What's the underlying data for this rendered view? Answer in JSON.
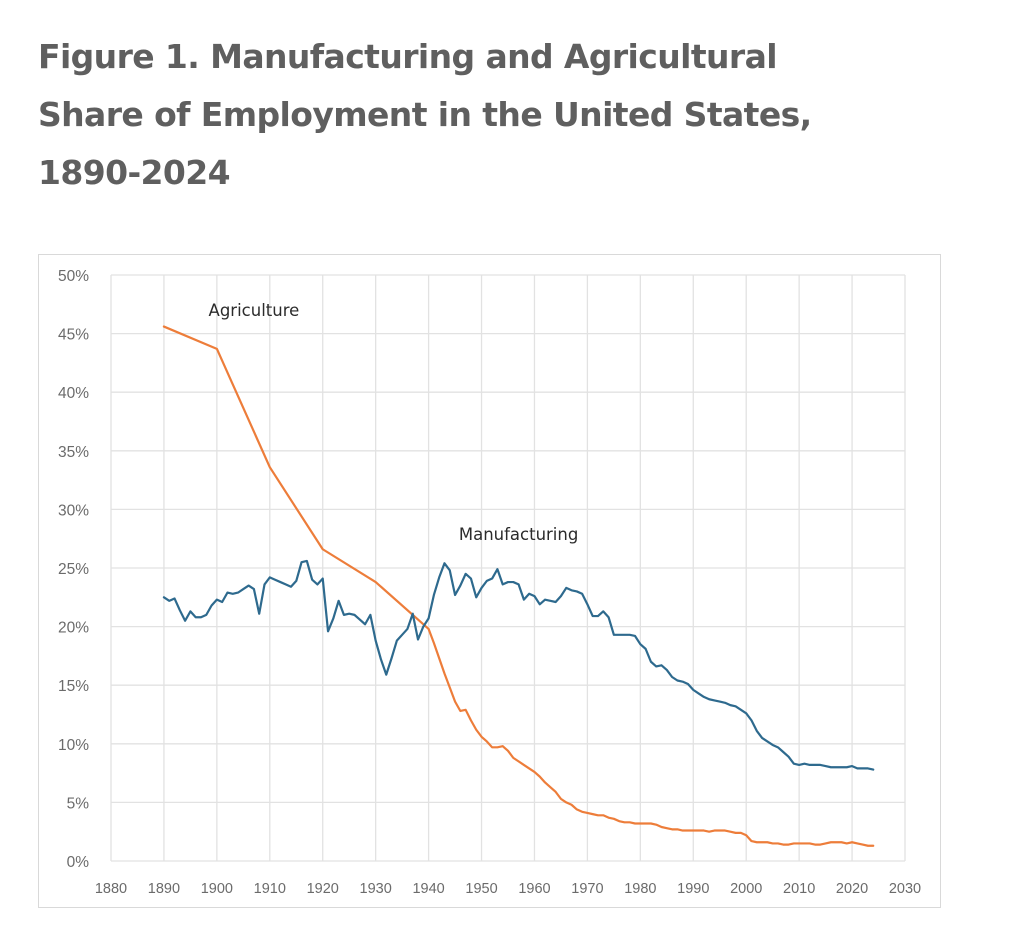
{
  "figure": {
    "title_lines": [
      "Figure 1. Manufacturing and Agricultural",
      "Share of Employment in the United States,",
      "1890-2024"
    ]
  },
  "chart_data": {
    "type": "line",
    "title": "Figure 1. Manufacturing and Agricultural Share of Employment in the United States, 1890-2024",
    "xlabel": "",
    "ylabel": "",
    "xlim": [
      1880,
      2030
    ],
    "ylim": [
      0,
      50
    ],
    "x_ticks": [
      1880,
      1890,
      1900,
      1910,
      1920,
      1930,
      1940,
      1950,
      1960,
      1970,
      1980,
      1990,
      2000,
      2010,
      2020,
      2030
    ],
    "x_tick_labels": [
      "1880",
      "1890",
      "1900",
      "1910",
      "1920",
      "1930",
      "1940",
      "1950",
      "1960",
      "1970",
      "1980",
      "1990",
      "2000",
      "2010",
      "2020",
      "2030"
    ],
    "y_ticks": [
      0,
      5,
      10,
      15,
      20,
      25,
      30,
      35,
      40,
      45,
      50
    ],
    "y_tick_labels": [
      "0%",
      "5%",
      "10%",
      "15%",
      "20%",
      "25%",
      "30%",
      "35%",
      "40%",
      "45%",
      "50%"
    ],
    "grid": true,
    "legend": "none (direct labels)",
    "annotations": [
      {
        "text": "Agriculture",
        "series": "Agriculture",
        "at": [
          1907,
          46.5
        ]
      },
      {
        "text": "Manufacturing",
        "series": "Manufacturing",
        "at": [
          1957,
          27.4
        ]
      }
    ],
    "series": [
      {
        "name": "Agriculture",
        "color": "#ED7D3A",
        "points": [
          [
            1890,
            45.6
          ],
          [
            1900,
            43.7
          ],
          [
            1910,
            33.6
          ],
          [
            1920,
            26.6
          ],
          [
            1930,
            23.8
          ],
          [
            1940,
            19.8
          ],
          [
            1941,
            18.6
          ],
          [
            1942,
            17.3
          ],
          [
            1943,
            16.0
          ],
          [
            1944,
            14.8
          ],
          [
            1945,
            13.6
          ],
          [
            1946,
            12.8
          ],
          [
            1947,
            12.9
          ],
          [
            1948,
            12.0
          ],
          [
            1949,
            11.2
          ],
          [
            1950,
            10.6
          ],
          [
            1951,
            10.2
          ],
          [
            1952,
            9.7
          ],
          [
            1953,
            9.7
          ],
          [
            1954,
            9.8
          ],
          [
            1955,
            9.4
          ],
          [
            1956,
            8.8
          ],
          [
            1957,
            8.5
          ],
          [
            1958,
            8.2
          ],
          [
            1959,
            7.9
          ],
          [
            1960,
            7.6
          ],
          [
            1961,
            7.2
          ],
          [
            1962,
            6.7
          ],
          [
            1963,
            6.3
          ],
          [
            1964,
            5.9
          ],
          [
            1965,
            5.3
          ],
          [
            1966,
            5.0
          ],
          [
            1967,
            4.8
          ],
          [
            1968,
            4.4
          ],
          [
            1969,
            4.2
          ],
          [
            1970,
            4.1
          ],
          [
            1971,
            4.0
          ],
          [
            1972,
            3.9
          ],
          [
            1973,
            3.9
          ],
          [
            1974,
            3.7
          ],
          [
            1975,
            3.6
          ],
          [
            1976,
            3.4
          ],
          [
            1977,
            3.3
          ],
          [
            1978,
            3.3
          ],
          [
            1979,
            3.2
          ],
          [
            1980,
            3.2
          ],
          [
            1981,
            3.2
          ],
          [
            1982,
            3.2
          ],
          [
            1983,
            3.1
          ],
          [
            1984,
            2.9
          ],
          [
            1985,
            2.8
          ],
          [
            1986,
            2.7
          ],
          [
            1987,
            2.7
          ],
          [
            1988,
            2.6
          ],
          [
            1989,
            2.6
          ],
          [
            1990,
            2.6
          ],
          [
            1991,
            2.6
          ],
          [
            1992,
            2.6
          ],
          [
            1993,
            2.5
          ],
          [
            1994,
            2.6
          ],
          [
            1995,
            2.6
          ],
          [
            1996,
            2.6
          ],
          [
            1997,
            2.5
          ],
          [
            1998,
            2.4
          ],
          [
            1999,
            2.4
          ],
          [
            2000,
            2.2
          ],
          [
            2001,
            1.7
          ],
          [
            2002,
            1.6
          ],
          [
            2003,
            1.6
          ],
          [
            2004,
            1.6
          ],
          [
            2005,
            1.5
          ],
          [
            2006,
            1.5
          ],
          [
            2007,
            1.4
          ],
          [
            2008,
            1.4
          ],
          [
            2009,
            1.5
          ],
          [
            2010,
            1.5
          ],
          [
            2011,
            1.5
          ],
          [
            2012,
            1.5
          ],
          [
            2013,
            1.4
          ],
          [
            2014,
            1.4
          ],
          [
            2015,
            1.5
          ],
          [
            2016,
            1.6
          ],
          [
            2017,
            1.6
          ],
          [
            2018,
            1.6
          ],
          [
            2019,
            1.5
          ],
          [
            2020,
            1.6
          ],
          [
            2021,
            1.5
          ],
          [
            2022,
            1.4
          ],
          [
            2023,
            1.3
          ],
          [
            2024,
            1.3
          ]
        ]
      },
      {
        "name": "Manufacturing",
        "color": "#2E6A8E",
        "points": [
          [
            1890,
            22.5
          ],
          [
            1891,
            22.2
          ],
          [
            1892,
            22.4
          ],
          [
            1893,
            21.4
          ],
          [
            1894,
            20.5
          ],
          [
            1895,
            21.3
          ],
          [
            1896,
            20.8
          ],
          [
            1897,
            20.8
          ],
          [
            1898,
            21.0
          ],
          [
            1899,
            21.8
          ],
          [
            1900,
            22.3
          ],
          [
            1901,
            22.1
          ],
          [
            1902,
            22.9
          ],
          [
            1903,
            22.8
          ],
          [
            1904,
            22.9
          ],
          [
            1905,
            23.2
          ],
          [
            1906,
            23.5
          ],
          [
            1907,
            23.2
          ],
          [
            1908,
            21.1
          ],
          [
            1909,
            23.6
          ],
          [
            1910,
            24.2
          ],
          [
            1911,
            24.0
          ],
          [
            1912,
            23.8
          ],
          [
            1913,
            23.6
          ],
          [
            1914,
            23.4
          ],
          [
            1915,
            23.9
          ],
          [
            1916,
            25.5
          ],
          [
            1917,
            25.6
          ],
          [
            1918,
            24.0
          ],
          [
            1919,
            23.6
          ],
          [
            1920,
            24.1
          ],
          [
            1921,
            19.6
          ],
          [
            1922,
            20.7
          ],
          [
            1923,
            22.2
          ],
          [
            1924,
            21.0
          ],
          [
            1925,
            21.1
          ],
          [
            1926,
            21.0
          ],
          [
            1927,
            20.6
          ],
          [
            1928,
            20.2
          ],
          [
            1929,
            21.0
          ],
          [
            1930,
            18.8
          ],
          [
            1931,
            17.2
          ],
          [
            1932,
            15.9
          ],
          [
            1933,
            17.3
          ],
          [
            1934,
            18.8
          ],
          [
            1935,
            19.3
          ],
          [
            1936,
            19.8
          ],
          [
            1937,
            21.1
          ],
          [
            1938,
            18.9
          ],
          [
            1939,
            20.0
          ],
          [
            1940,
            20.7
          ],
          [
            1941,
            22.7
          ],
          [
            1942,
            24.2
          ],
          [
            1943,
            25.4
          ],
          [
            1944,
            24.8
          ],
          [
            1945,
            22.7
          ],
          [
            1946,
            23.5
          ],
          [
            1947,
            24.5
          ],
          [
            1948,
            24.1
          ],
          [
            1949,
            22.5
          ],
          [
            1950,
            23.3
          ],
          [
            1951,
            23.9
          ],
          [
            1952,
            24.1
          ],
          [
            1953,
            24.9
          ],
          [
            1954,
            23.6
          ],
          [
            1955,
            23.8
          ],
          [
            1956,
            23.8
          ],
          [
            1957,
            23.6
          ],
          [
            1958,
            22.3
          ],
          [
            1959,
            22.8
          ],
          [
            1960,
            22.6
          ],
          [
            1961,
            21.9
          ],
          [
            1962,
            22.3
          ],
          [
            1963,
            22.2
          ],
          [
            1964,
            22.1
          ],
          [
            1965,
            22.6
          ],
          [
            1966,
            23.3
          ],
          [
            1967,
            23.1
          ],
          [
            1968,
            23.0
          ],
          [
            1969,
            22.8
          ],
          [
            1970,
            21.9
          ],
          [
            1971,
            20.9
          ],
          [
            1972,
            20.9
          ],
          [
            1973,
            21.3
          ],
          [
            1974,
            20.8
          ],
          [
            1975,
            19.3
          ],
          [
            1976,
            19.3
          ],
          [
            1977,
            19.3
          ],
          [
            1978,
            19.3
          ],
          [
            1979,
            19.2
          ],
          [
            1980,
            18.5
          ],
          [
            1981,
            18.1
          ],
          [
            1982,
            17.0
          ],
          [
            1983,
            16.6
          ],
          [
            1984,
            16.7
          ],
          [
            1985,
            16.3
          ],
          [
            1986,
            15.7
          ],
          [
            1987,
            15.4
          ],
          [
            1988,
            15.3
          ],
          [
            1989,
            15.1
          ],
          [
            1990,
            14.6
          ],
          [
            1991,
            14.3
          ],
          [
            1992,
            14.0
          ],
          [
            1993,
            13.8
          ],
          [
            1994,
            13.7
          ],
          [
            1995,
            13.6
          ],
          [
            1996,
            13.5
          ],
          [
            1997,
            13.3
          ],
          [
            1998,
            13.2
          ],
          [
            1999,
            12.9
          ],
          [
            2000,
            12.6
          ],
          [
            2001,
            12.0
          ],
          [
            2002,
            11.1
          ],
          [
            2003,
            10.5
          ],
          [
            2004,
            10.2
          ],
          [
            2005,
            9.9
          ],
          [
            2006,
            9.7
          ],
          [
            2007,
            9.3
          ],
          [
            2008,
            8.9
          ],
          [
            2009,
            8.3
          ],
          [
            2010,
            8.2
          ],
          [
            2011,
            8.3
          ],
          [
            2012,
            8.2
          ],
          [
            2013,
            8.2
          ],
          [
            2014,
            8.2
          ],
          [
            2015,
            8.1
          ],
          [
            2016,
            8.0
          ],
          [
            2017,
            8.0
          ],
          [
            2018,
            8.0
          ],
          [
            2019,
            8.0
          ],
          [
            2020,
            8.1
          ],
          [
            2021,
            7.9
          ],
          [
            2022,
            7.9
          ],
          [
            2023,
            7.9
          ],
          [
            2024,
            7.8
          ]
        ]
      }
    ]
  }
}
